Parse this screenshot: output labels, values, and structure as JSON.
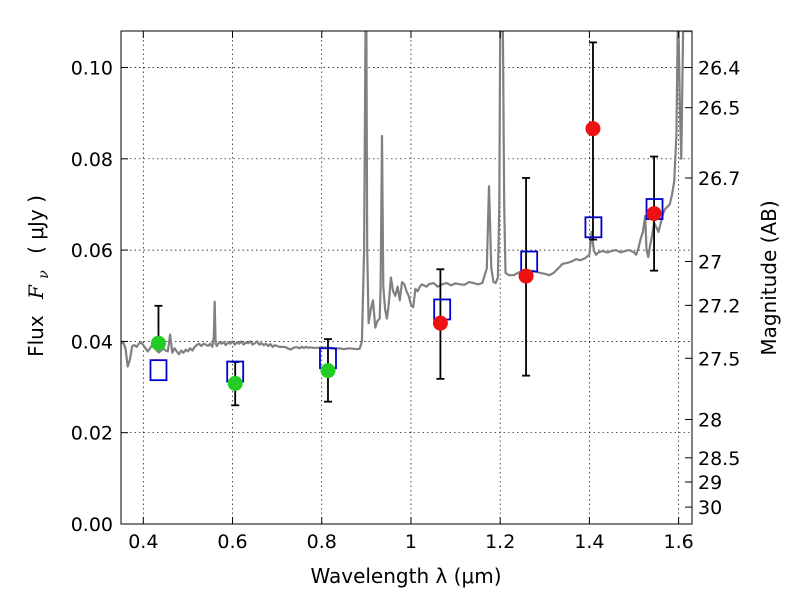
{
  "chart_data": {
    "type": "scatter",
    "xlabel": "Wavelength  λ (μm)",
    "ylabel_prefix": "Flux",
    "ylabel_symbol": "F",
    "ylabel_subscript": "ν",
    "ylabel_units": "( μJy )",
    "y2label": "Magnitude (AB)",
    "xlim": [
      0.35,
      1.63
    ],
    "ylim": [
      0,
      0.108
    ],
    "grid": true,
    "x_ticks": [
      {
        "value": 0.4,
        "label": "0.4"
      },
      {
        "value": 0.6,
        "label": "0.6"
      },
      {
        "value": 0.8,
        "label": "0.8"
      },
      {
        "value": 1.0,
        "label": "1"
      },
      {
        "value": 1.2,
        "label": "1.2"
      },
      {
        "value": 1.4,
        "label": "1.4"
      },
      {
        "value": 1.6,
        "label": "1.6"
      }
    ],
    "y_ticks": [
      {
        "value": 0.0,
        "label": "0.00"
      },
      {
        "value": 0.02,
        "label": "0.02"
      },
      {
        "value": 0.04,
        "label": "0.04"
      },
      {
        "value": 0.06,
        "label": "0.06"
      },
      {
        "value": 0.08,
        "label": "0.08"
      },
      {
        "value": 0.1,
        "label": "0.10"
      }
    ],
    "y2_ticks": [
      {
        "flux": 0.1,
        "label": "26.4"
      },
      {
        "flux": 0.0912,
        "label": "26.5"
      },
      {
        "flux": 0.0758,
        "label": "26.7"
      },
      {
        "flux": 0.0575,
        "label": "27"
      },
      {
        "flux": 0.0479,
        "label": "27.2"
      },
      {
        "flux": 0.0363,
        "label": "27.5"
      },
      {
        "flux": 0.0229,
        "label": "28"
      },
      {
        "flux": 0.0145,
        "label": "28.5"
      },
      {
        "flux": 0.0092,
        "label": "29"
      },
      {
        "flux": 0.0037,
        "label": "30"
      }
    ],
    "colors": {
      "sed": "#808080",
      "model": "#0000cc",
      "optical": "#22cc22",
      "infrared": "#ee1111",
      "errorbar": "#000000"
    },
    "sed_spectrum": {
      "name": "",
      "points": [
        [
          0.35,
          0.0395
        ],
        [
          0.355,
          0.0398
        ],
        [
          0.36,
          0.0385
        ],
        [
          0.365,
          0.0345
        ],
        [
          0.37,
          0.036
        ],
        [
          0.375,
          0.039
        ],
        [
          0.38,
          0.0392
        ],
        [
          0.385,
          0.0388
        ],
        [
          0.39,
          0.0395
        ],
        [
          0.395,
          0.0398
        ],
        [
          0.4,
          0.0392
        ],
        [
          0.405,
          0.0385
        ],
        [
          0.41,
          0.0378
        ],
        [
          0.415,
          0.0385
        ],
        [
          0.42,
          0.0392
        ],
        [
          0.425,
          0.0388
        ],
        [
          0.43,
          0.038
        ],
        [
          0.435,
          0.0376
        ],
        [
          0.44,
          0.038
        ],
        [
          0.445,
          0.0385
        ],
        [
          0.45,
          0.038
        ],
        [
          0.455,
          0.0378
        ],
        [
          0.46,
          0.0415
        ],
        [
          0.465,
          0.0375
        ],
        [
          0.47,
          0.0385
        ],
        [
          0.475,
          0.0378
        ],
        [
          0.48,
          0.0372
        ],
        [
          0.485,
          0.038
        ],
        [
          0.49,
          0.0375
        ],
        [
          0.495,
          0.0382
        ],
        [
          0.5,
          0.0378
        ],
        [
          0.505,
          0.0385
        ],
        [
          0.51,
          0.038
        ],
        [
          0.515,
          0.0388
        ],
        [
          0.52,
          0.0392
        ],
        [
          0.525,
          0.0395
        ],
        [
          0.53,
          0.039
        ],
        [
          0.535,
          0.0395
        ],
        [
          0.54,
          0.0393
        ],
        [
          0.545,
          0.039
        ],
        [
          0.55,
          0.0395
        ],
        [
          0.555,
          0.0388
        ],
        [
          0.558,
          0.041
        ],
        [
          0.56,
          0.0487
        ],
        [
          0.562,
          0.0395
        ],
        [
          0.565,
          0.039
        ],
        [
          0.57,
          0.0398
        ],
        [
          0.575,
          0.0395
        ],
        [
          0.58,
          0.0398
        ],
        [
          0.585,
          0.0392
        ],
        [
          0.59,
          0.0398
        ],
        [
          0.595,
          0.0395
        ],
        [
          0.6,
          0.04
        ],
        [
          0.605,
          0.0393
        ],
        [
          0.61,
          0.0398
        ],
        [
          0.615,
          0.0395
        ],
        [
          0.62,
          0.04
        ],
        [
          0.625,
          0.0393
        ],
        [
          0.63,
          0.0398
        ],
        [
          0.635,
          0.0396
        ],
        [
          0.64,
          0.04
        ],
        [
          0.645,
          0.0393
        ],
        [
          0.65,
          0.0396
        ],
        [
          0.655,
          0.04
        ],
        [
          0.66,
          0.0393
        ],
        [
          0.665,
          0.0396
        ],
        [
          0.67,
          0.0392
        ],
        [
          0.675,
          0.0395
        ],
        [
          0.68,
          0.039
        ],
        [
          0.685,
          0.0394
        ],
        [
          0.69,
          0.0388
        ],
        [
          0.695,
          0.0392
        ],
        [
          0.7,
          0.039
        ],
        [
          0.705,
          0.0388
        ],
        [
          0.71,
          0.0388
        ],
        [
          0.715,
          0.0388
        ],
        [
          0.72,
          0.0387
        ],
        [
          0.725,
          0.0384
        ],
        [
          0.73,
          0.0382
        ],
        [
          0.735,
          0.0385
        ],
        [
          0.74,
          0.0387
        ],
        [
          0.745,
          0.0387
        ],
        [
          0.75,
          0.0385
        ],
        [
          0.755,
          0.0388
        ],
        [
          0.76,
          0.0386
        ],
        [
          0.765,
          0.0388
        ],
        [
          0.77,
          0.0386
        ],
        [
          0.775,
          0.0387
        ],
        [
          0.78,
          0.0386
        ],
        [
          0.79,
          0.0386
        ],
        [
          0.8,
          0.0387
        ],
        [
          0.81,
          0.0386
        ],
        [
          0.82,
          0.0386
        ],
        [
          0.83,
          0.0384
        ],
        [
          0.84,
          0.0385
        ],
        [
          0.85,
          0.0383
        ],
        [
          0.86,
          0.0385
        ],
        [
          0.87,
          0.0384
        ],
        [
          0.88,
          0.0383
        ],
        [
          0.885,
          0.0384
        ],
        [
          0.89,
          0.04
        ],
        [
          0.895,
          0.06
        ],
        [
          0.898,
          0.108
        ],
        [
          0.9,
          0.108
        ],
        [
          0.902,
          0.06
        ],
        [
          0.905,
          0.044
        ],
        [
          0.91,
          0.047
        ],
        [
          0.915,
          0.049
        ],
        [
          0.92,
          0.043
        ],
        [
          0.925,
          0.0445
        ],
        [
          0.93,
          0.045
        ],
        [
          0.932,
          0.052
        ],
        [
          0.935,
          0.085
        ],
        [
          0.938,
          0.052
        ],
        [
          0.942,
          0.047
        ],
        [
          0.946,
          0.045
        ],
        [
          0.95,
          0.048
        ],
        [
          0.955,
          0.054
        ],
        [
          0.96,
          0.051
        ],
        [
          0.965,
          0.05
        ],
        [
          0.97,
          0.052
        ],
        [
          0.975,
          0.049
        ],
        [
          0.98,
          0.053
        ],
        [
          0.985,
          0.0525
        ],
        [
          0.99,
          0.051
        ],
        [
          0.995,
          0.05
        ],
        [
          1.0,
          0.048
        ],
        [
          1.005,
          0.0475
        ],
        [
          1.01,
          0.0515
        ],
        [
          1.015,
          0.051
        ],
        [
          1.02,
          0.052
        ],
        [
          1.025,
          0.0525
        ],
        [
          1.03,
          0.0522
        ],
        [
          1.035,
          0.052
        ],
        [
          1.04,
          0.0525
        ],
        [
          1.05,
          0.0528
        ],
        [
          1.06,
          0.052
        ],
        [
          1.07,
          0.0525
        ],
        [
          1.08,
          0.0528
        ],
        [
          1.09,
          0.0523
        ],
        [
          1.1,
          0.0527
        ],
        [
          1.11,
          0.0525
        ],
        [
          1.12,
          0.0524
        ],
        [
          1.13,
          0.053
        ],
        [
          1.14,
          0.0528
        ],
        [
          1.15,
          0.0525
        ],
        [
          1.16,
          0.0528
        ],
        [
          1.17,
          0.056
        ],
        [
          1.175,
          0.074
        ],
        [
          1.18,
          0.056
        ],
        [
          1.185,
          0.053
        ],
        [
          1.19,
          0.0528
        ],
        [
          1.195,
          0.054
        ],
        [
          1.198,
          0.07
        ],
        [
          1.2,
          0.108
        ],
        [
          1.203,
          0.108
        ],
        [
          1.206,
          0.108
        ],
        [
          1.209,
          0.07
        ],
        [
          1.212,
          0.055
        ],
        [
          1.22,
          0.0545
        ],
        [
          1.23,
          0.0545
        ],
        [
          1.24,
          0.055
        ],
        [
          1.25,
          0.0555
        ],
        [
          1.26,
          0.055
        ],
        [
          1.27,
          0.0555
        ],
        [
          1.28,
          0.0553
        ],
        [
          1.29,
          0.055
        ],
        [
          1.3,
          0.0548
        ],
        [
          1.31,
          0.0545
        ],
        [
          1.32,
          0.055
        ],
        [
          1.33,
          0.056
        ],
        [
          1.34,
          0.057
        ],
        [
          1.35,
          0.0572
        ],
        [
          1.36,
          0.0575
        ],
        [
          1.37,
          0.058
        ],
        [
          1.38,
          0.0578
        ],
        [
          1.39,
          0.0582
        ],
        [
          1.4,
          0.059
        ],
        [
          1.405,
          0.064
        ],
        [
          1.41,
          0.0598
        ],
        [
          1.415,
          0.059
        ],
        [
          1.42,
          0.0595
        ],
        [
          1.43,
          0.0598
        ],
        [
          1.44,
          0.0595
        ],
        [
          1.45,
          0.0598
        ],
        [
          1.46,
          0.06
        ],
        [
          1.47,
          0.0595
        ],
        [
          1.48,
          0.0598
        ],
        [
          1.49,
          0.06
        ],
        [
          1.5,
          0.0595
        ],
        [
          1.505,
          0.059
        ],
        [
          1.51,
          0.0605
        ],
        [
          1.515,
          0.0625
        ],
        [
          1.52,
          0.064
        ],
        [
          1.525,
          0.0675
        ],
        [
          1.528,
          0.06
        ],
        [
          1.532,
          0.0585
        ],
        [
          1.536,
          0.061
        ],
        [
          1.54,
          0.063
        ],
        [
          1.545,
          0.066
        ],
        [
          1.55,
          0.065
        ],
        [
          1.555,
          0.064
        ],
        [
          1.56,
          0.066
        ],
        [
          1.565,
          0.068
        ],
        [
          1.57,
          0.069
        ],
        [
          1.575,
          0.0695
        ],
        [
          1.58,
          0.07
        ],
        [
          1.585,
          0.072
        ],
        [
          1.59,
          0.075
        ],
        [
          1.595,
          0.085
        ],
        [
          1.598,
          0.108
        ],
        [
          1.6,
          0.108
        ],
        [
          1.603,
          0.09
        ],
        [
          1.606,
          0.08
        ],
        [
          1.61,
          0.108
        ],
        [
          1.615,
          0.108
        ],
        [
          1.62,
          0.108
        ],
        [
          1.63,
          0.108
        ]
      ]
    },
    "model_points": {
      "name": "",
      "x": [
        0.434,
        0.606,
        0.814,
        1.07,
        1.265,
        1.409,
        1.546
      ],
      "y": [
        0.0337,
        0.0334,
        0.0363,
        0.047,
        0.0575,
        0.065,
        0.069
      ]
    },
    "observed_optical": {
      "name": "",
      "x": [
        0.434,
        0.606,
        0.814
      ],
      "y": [
        0.0396,
        0.0308,
        0.0336
      ],
      "yerr_low": [
        0.0396,
        0.026,
        0.0268
      ],
      "yerr_high": [
        0.0478,
        0.0355,
        0.0405
      ]
    },
    "observed_infrared": {
      "name": "",
      "x": [
        1.066,
        1.258,
        1.408,
        1.545
      ],
      "y": [
        0.044,
        0.0543,
        0.0866,
        0.068
      ],
      "yerr_low": [
        0.0318,
        0.0325,
        0.0623,
        0.0555
      ],
      "yerr_high": [
        0.0558,
        0.0758,
        0.1055,
        0.0805
      ]
    }
  }
}
